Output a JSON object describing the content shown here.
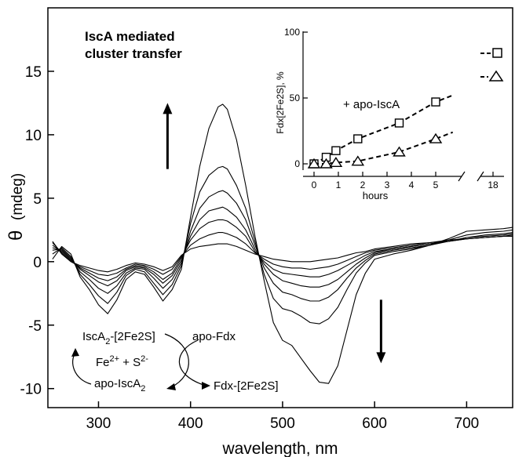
{
  "chart_data": [
    {
      "type": "line",
      "title": "IscA mediated cluster transfer",
      "title_lines": [
        "IscA mediated",
        "cluster transfer"
      ],
      "xlabel": "wavelength, nm",
      "ylabel_symbol": "θ",
      "ylabel_unit": "(mdeg)",
      "xlim": [
        245,
        750
      ],
      "ylim": [
        -11.5,
        20
      ],
      "xticks": [
        300,
        400,
        500,
        600,
        700
      ],
      "yticks": [
        -10,
        -5,
        0,
        5,
        10,
        15
      ],
      "grid": false,
      "x": [
        250,
        260,
        270,
        280,
        290,
        300,
        310,
        320,
        330,
        340,
        350,
        360,
        370,
        380,
        390,
        400,
        410,
        420,
        430,
        435,
        440,
        450,
        460,
        470,
        480,
        490,
        500,
        510,
        520,
        530,
        540,
        550,
        560,
        570,
        580,
        590,
        600,
        620,
        640,
        660,
        680,
        700,
        720,
        740,
        750
      ],
      "series": [
        {
          "values": [
            0.2,
            1.2,
            0.6,
            -1.2,
            -2.2,
            -3.4,
            -4.1,
            -3.0,
            -1.4,
            -0.8,
            -1.0,
            -2.0,
            -3.1,
            -2.2,
            -0.6,
            3.5,
            7.5,
            10.5,
            12.2,
            12.4,
            12.0,
            9.6,
            6.0,
            2.0,
            -1.5,
            -4.8,
            -6.2,
            -6.6,
            -7.6,
            -8.6,
            -9.5,
            -9.6,
            -8.2,
            -5.4,
            -2.6,
            -0.9,
            0.2,
            0.6,
            0.9,
            1.3,
            1.8,
            2.4,
            2.5,
            2.6,
            2.7
          ]
        },
        {
          "values": [
            0.6,
            1.1,
            0.4,
            -1.0,
            -1.8,
            -2.7,
            -3.3,
            -2.4,
            -1.1,
            -0.6,
            -0.8,
            -1.7,
            -2.6,
            -1.8,
            -0.3,
            3.0,
            5.5,
            6.8,
            7.4,
            7.5,
            7.3,
            6.0,
            4.2,
            1.6,
            -1.0,
            -2.9,
            -3.7,
            -3.9,
            -4.3,
            -4.8,
            -4.9,
            -4.5,
            -3.6,
            -2.2,
            -0.9,
            -0.1,
            0.5,
            0.8,
            1.0,
            1.3,
            1.7,
            2.1,
            2.3,
            2.4,
            2.5
          ]
        },
        {
          "values": [
            0.9,
            1.0,
            0.3,
            -0.8,
            -1.4,
            -2.1,
            -2.5,
            -1.9,
            -0.9,
            -0.5,
            -0.6,
            -1.3,
            -2.1,
            -1.4,
            -0.1,
            2.4,
            4.2,
            5.1,
            5.5,
            5.6,
            5.4,
            4.6,
            3.3,
            1.3,
            -0.5,
            -1.7,
            -2.4,
            -2.6,
            -2.9,
            -3.1,
            -3.1,
            -2.8,
            -2.2,
            -1.3,
            -0.5,
            0.1,
            0.6,
            0.9,
            1.1,
            1.3,
            1.6,
            1.9,
            2.1,
            2.2,
            2.3
          ]
        },
        {
          "values": [
            1.1,
            0.9,
            0.2,
            -0.6,
            -1.1,
            -1.6,
            -1.9,
            -1.5,
            -0.7,
            -0.4,
            -0.5,
            -1.0,
            -1.7,
            -1.1,
            0.1,
            2.0,
            3.3,
            4.0,
            4.2,
            4.3,
            4.1,
            3.5,
            2.5,
            1.0,
            -0.2,
            -1.0,
            -1.5,
            -1.7,
            -1.9,
            -2.0,
            -2.0,
            -1.8,
            -1.4,
            -0.8,
            -0.2,
            0.3,
            0.7,
            1.0,
            1.2,
            1.4,
            1.6,
            1.9,
            2.0,
            2.1,
            2.2
          ]
        },
        {
          "values": [
            1.3,
            0.8,
            0.1,
            -0.5,
            -0.9,
            -1.3,
            -1.5,
            -1.2,
            -0.6,
            -0.3,
            -0.4,
            -0.8,
            -1.4,
            -0.9,
            0.3,
            1.7,
            2.6,
            3.1,
            3.3,
            3.3,
            3.2,
            2.7,
            2.0,
            0.8,
            0.0,
            -0.6,
            -0.9,
            -1.0,
            -1.1,
            -1.2,
            -1.2,
            -1.0,
            -0.7,
            -0.3,
            0.1,
            0.5,
            0.8,
            1.0,
            1.2,
            1.4,
            1.6,
            1.8,
            1.9,
            2.0,
            2.1
          ]
        },
        {
          "values": [
            1.5,
            0.7,
            0.0,
            -0.4,
            -0.7,
            -1.0,
            -1.1,
            -0.9,
            -0.5,
            -0.2,
            -0.3,
            -0.6,
            -1.0,
            -0.6,
            0.4,
            1.3,
            1.8,
            2.1,
            2.3,
            2.3,
            2.2,
            1.9,
            1.4,
            0.7,
            0.2,
            -0.2,
            -0.4,
            -0.5,
            -0.5,
            -0.6,
            -0.5,
            -0.4,
            -0.2,
            0.1,
            0.4,
            0.7,
            0.9,
            1.1,
            1.3,
            1.5,
            1.6,
            1.8,
            1.9,
            2.0,
            2.0
          ]
        },
        {
          "values": [
            1.6,
            0.6,
            0.0,
            -0.3,
            -0.5,
            -0.7,
            -0.8,
            -0.6,
            -0.3,
            -0.1,
            -0.2,
            -0.4,
            -0.7,
            -0.4,
            0.5,
            1.0,
            1.2,
            1.3,
            1.4,
            1.4,
            1.4,
            1.2,
            0.9,
            0.6,
            0.4,
            0.2,
            0.1,
            0.0,
            0.0,
            0.0,
            0.1,
            0.2,
            0.3,
            0.5,
            0.7,
            0.8,
            1.0,
            1.2,
            1.4,
            1.5,
            1.7,
            1.8,
            1.9,
            2.0,
            2.0
          ]
        }
      ],
      "annotations": {
        "up_arrow": {
          "x": 375,
          "y1": 7.3,
          "y2": 12.5
        },
        "down_arrow": {
          "x": 607,
          "y1": -3.0,
          "y2": -8.0
        },
        "scheme": {
          "left_top_main": "IscA",
          "left_top_sub": "2",
          "left_top_rest": "-[2Fe2S]",
          "middle": "Fe",
          "middle_sup1": "2+",
          "middle_plus": " + S",
          "middle_sup2": "2-",
          "left_bottom_main": "apo-IscA",
          "left_bottom_sub": "2",
          "right_top": "apo-Fdx",
          "right_bottom": "Fdx-[2Fe2S]"
        }
      }
    },
    {
      "type": "scatter",
      "inset": true,
      "xlabel": "hours",
      "ylabel": "Fdx[2Fe2S], %",
      "ylim": [
        0,
        100
      ],
      "yticks": [
        0,
        50,
        100
      ],
      "xticks": [
        0,
        1,
        2,
        3,
        4,
        5,
        18
      ],
      "axis_break": "between 5 and 18",
      "annotation": "+ apo-IscA",
      "series": [
        {
          "marker": "square",
          "x": [
            0,
            0.5,
            0.9,
            1.8,
            3.5,
            5.0
          ],
          "y": [
            0,
            5,
            10,
            19,
            31,
            47
          ],
          "trend_end": [
            5.7,
            52
          ]
        },
        {
          "marker": "triangle",
          "x": [
            0,
            0.5,
            0.9,
            1.8,
            3.5,
            5.0
          ],
          "y": [
            0,
            0,
            1,
            2,
            9,
            19
          ],
          "trend_end": [
            5.7,
            24
          ]
        }
      ]
    }
  ]
}
